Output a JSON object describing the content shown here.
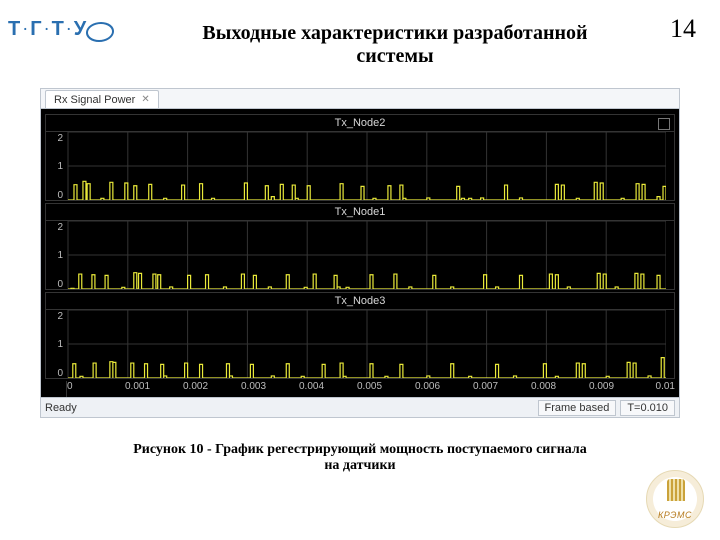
{
  "page_number": "14",
  "slide_title_line1": "Выходные характеристики разработанной",
  "slide_title_line2": "системы",
  "logo_left_letters": [
    "Т",
    "Г",
    "Т",
    "У"
  ],
  "logo_left_color": "#2a6fb0",
  "scope": {
    "tab_label": "Rx Signal Power",
    "status_left": "Ready",
    "status_frame": "Frame based",
    "status_time": "T=0.010",
    "background_color": "#000000",
    "trace_color": "#eaea3a",
    "grid_color": "#343434",
    "axis_text_color": "#bdbdbd",
    "x": {
      "min": 0,
      "max": 0.01,
      "ticks": [
        0,
        0.001,
        0.002,
        0.003,
        0.004,
        0.005,
        0.006,
        0.007,
        0.008,
        0.009,
        0.01
      ],
      "labels": [
        "0",
        "0.001",
        "0.002",
        "0.003",
        "0.004",
        "0.005",
        "0.006",
        "0.007",
        "0.008",
        "0.009",
        "0.01"
      ]
    },
    "panels": [
      {
        "title": "Tx_Node2",
        "ymin": 0,
        "ymax": 2,
        "yticks": [
          0,
          1,
          2
        ],
        "series": [
          [
            0.0001,
            0.45
          ],
          [
            0.00018,
            0.0
          ],
          [
            0.00025,
            0.55
          ],
          [
            0.00032,
            0.48
          ],
          [
            0.0004,
            0.0
          ],
          [
            0.00055,
            0.05
          ],
          [
            0.0007,
            0.52
          ],
          [
            0.0008,
            0.0
          ],
          [
            0.00095,
            0.5
          ],
          [
            0.0011,
            0.42
          ],
          [
            0.00115,
            0.0
          ],
          [
            0.00135,
            0.46
          ],
          [
            0.00145,
            0.0
          ],
          [
            0.0016,
            0.05
          ],
          [
            0.0019,
            0.44
          ],
          [
            0.00195,
            0.0
          ],
          [
            0.0022,
            0.48
          ],
          [
            0.00228,
            0.0
          ],
          [
            0.0024,
            0.05
          ],
          [
            0.00295,
            0.5
          ],
          [
            0.00305,
            0.0
          ],
          [
            0.0033,
            0.42
          ],
          [
            0.00336,
            0.0
          ],
          [
            0.0034,
            0.1
          ],
          [
            0.00355,
            0.46
          ],
          [
            0.0036,
            0.0
          ],
          [
            0.00375,
            0.44
          ],
          [
            0.0038,
            0.05
          ],
          [
            0.004,
            0.42
          ],
          [
            0.00406,
            0.0
          ],
          [
            0.00455,
            0.48
          ],
          [
            0.00462,
            0.0
          ],
          [
            0.0049,
            0.4
          ],
          [
            0.00498,
            0.0
          ],
          [
            0.0051,
            0.05
          ],
          [
            0.00535,
            0.42
          ],
          [
            0.00542,
            0.0
          ],
          [
            0.00555,
            0.44
          ],
          [
            0.0056,
            0.05
          ],
          [
            0.006,
            0.06
          ],
          [
            0.0065,
            0.4
          ],
          [
            0.00658,
            0.05
          ],
          [
            0.0067,
            0.05
          ],
          [
            0.0069,
            0.06
          ],
          [
            0.0073,
            0.44
          ],
          [
            0.00738,
            0.0
          ],
          [
            0.00755,
            0.06
          ],
          [
            0.00815,
            0.46
          ],
          [
            0.00825,
            0.44
          ],
          [
            0.0083,
            0.0
          ],
          [
            0.0085,
            0.05
          ],
          [
            0.0088,
            0.52
          ],
          [
            0.0089,
            0.5
          ],
          [
            0.009,
            0.0
          ],
          [
            0.00925,
            0.05
          ],
          [
            0.0095,
            0.48
          ],
          [
            0.0096,
            0.46
          ],
          [
            0.00965,
            0.0
          ],
          [
            0.00985,
            0.1
          ],
          [
            0.00995,
            0.4
          ]
        ]
      },
      {
        "title": "Tx_Node1",
        "ymin": 0,
        "ymax": 2,
        "yticks": [
          0,
          1,
          2
        ],
        "series": [
          [
            5e-05,
            0.02
          ],
          [
            0.00018,
            0.44
          ],
          [
            0.00025,
            0.0
          ],
          [
            0.0004,
            0.42
          ],
          [
            0.00045,
            0.0
          ],
          [
            0.00062,
            0.4
          ],
          [
            0.00068,
            0.0
          ],
          [
            0.0009,
            0.05
          ],
          [
            0.0011,
            0.48
          ],
          [
            0.00118,
            0.46
          ],
          [
            0.00122,
            0.0
          ],
          [
            0.00142,
            0.44
          ],
          [
            0.0015,
            0.42
          ],
          [
            0.00155,
            0.0
          ],
          [
            0.0017,
            0.06
          ],
          [
            0.002,
            0.4
          ],
          [
            0.00208,
            0.0
          ],
          [
            0.0023,
            0.42
          ],
          [
            0.00238,
            0.0
          ],
          [
            0.0026,
            0.06
          ],
          [
            0.0029,
            0.44
          ],
          [
            0.00298,
            0.0
          ],
          [
            0.0031,
            0.4
          ],
          [
            0.00318,
            0.0
          ],
          [
            0.00335,
            0.06
          ],
          [
            0.00365,
            0.42
          ],
          [
            0.0037,
            0.0
          ],
          [
            0.00395,
            0.05
          ],
          [
            0.0041,
            0.44
          ],
          [
            0.00418,
            0.0
          ],
          [
            0.00445,
            0.4
          ],
          [
            0.0045,
            0.06
          ],
          [
            0.00465,
            0.05
          ],
          [
            0.00505,
            0.42
          ],
          [
            0.00512,
            0.0
          ],
          [
            0.00545,
            0.44
          ],
          [
            0.00555,
            0.0
          ],
          [
            0.0057,
            0.06
          ],
          [
            0.0061,
            0.4
          ],
          [
            0.00618,
            0.0
          ],
          [
            0.0064,
            0.06
          ],
          [
            0.00695,
            0.42
          ],
          [
            0.007,
            0.0
          ],
          [
            0.00715,
            0.06
          ],
          [
            0.00755,
            0.4
          ],
          [
            0.0076,
            0.0
          ],
          [
            0.00805,
            0.44
          ],
          [
            0.00815,
            0.42
          ],
          [
            0.0082,
            0.0
          ],
          [
            0.00835,
            0.06
          ],
          [
            0.00885,
            0.46
          ],
          [
            0.00895,
            0.44
          ],
          [
            0.009,
            0.0
          ],
          [
            0.00915,
            0.06
          ],
          [
            0.00948,
            0.46
          ],
          [
            0.00958,
            0.44
          ],
          [
            0.00962,
            0.0
          ],
          [
            0.00985,
            0.4
          ],
          [
            0.00995,
            0.0
          ]
        ]
      },
      {
        "title": "Tx_Node3",
        "ymin": 0,
        "ymax": 2,
        "yticks": [
          0,
          1,
          2
        ],
        "series": [
          [
            8e-05,
            0.42
          ],
          [
            0.00012,
            0.0
          ],
          [
            0.0002,
            0.05
          ],
          [
            0.00042,
            0.44
          ],
          [
            0.0005,
            0.0
          ],
          [
            0.0007,
            0.48
          ],
          [
            0.00075,
            0.46
          ],
          [
            0.0008,
            0.0
          ],
          [
            0.00105,
            0.44
          ],
          [
            0.0011,
            0.0
          ],
          [
            0.00128,
            0.42
          ],
          [
            0.00132,
            0.0
          ],
          [
            0.00155,
            0.4
          ],
          [
            0.0016,
            0.06
          ],
          [
            0.00195,
            0.44
          ],
          [
            0.002,
            0.0
          ],
          [
            0.0022,
            0.4
          ],
          [
            0.00228,
            0.0
          ],
          [
            0.00265,
            0.42
          ],
          [
            0.0027,
            0.06
          ],
          [
            0.00305,
            0.4
          ],
          [
            0.0031,
            0.0
          ],
          [
            0.0034,
            0.06
          ],
          [
            0.00365,
            0.42
          ],
          [
            0.0037,
            0.0
          ],
          [
            0.0039,
            0.05
          ],
          [
            0.00425,
            0.4
          ],
          [
            0.00432,
            0.0
          ],
          [
            0.00455,
            0.44
          ],
          [
            0.0046,
            0.05
          ],
          [
            0.00505,
            0.42
          ],
          [
            0.0051,
            0.0
          ],
          [
            0.0053,
            0.05
          ],
          [
            0.00555,
            0.4
          ],
          [
            0.0056,
            0.0
          ],
          [
            0.006,
            0.06
          ],
          [
            0.0064,
            0.42
          ],
          [
            0.00648,
            0.0
          ],
          [
            0.0067,
            0.05
          ],
          [
            0.00715,
            0.4
          ],
          [
            0.0072,
            0.0
          ],
          [
            0.00745,
            0.06
          ],
          [
            0.00795,
            0.42
          ],
          [
            0.008,
            0.0
          ],
          [
            0.00815,
            0.05
          ],
          [
            0.0085,
            0.44
          ],
          [
            0.0086,
            0.42
          ],
          [
            0.00865,
            0.0
          ],
          [
            0.009,
            0.05
          ],
          [
            0.00935,
            0.46
          ],
          [
            0.00945,
            0.44
          ],
          [
            0.0095,
            0.0
          ],
          [
            0.0097,
            0.06
          ],
          [
            0.00992,
            0.6
          ],
          [
            0.00998,
            0.0
          ]
        ]
      }
    ]
  },
  "caption_line1": "Рисунок 10  -  График регестрирующий мощность поступаемого сигнала",
  "caption_line2": "на датчики",
  "logo_right_label": "КРЭМС"
}
